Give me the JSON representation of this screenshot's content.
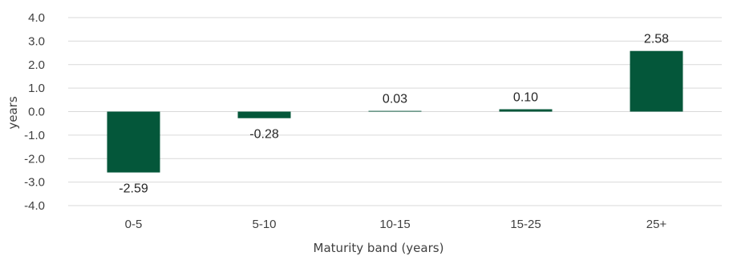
{
  "chart_data": {
    "type": "bar",
    "title": "",
    "xlabel": "Maturity band (years)",
    "ylabel": "years",
    "categories": [
      "0-5",
      "5-10",
      "10-15",
      "15-25",
      "25+"
    ],
    "values": [
      -2.59,
      -0.28,
      0.03,
      0.1,
      2.58
    ],
    "data_labels": [
      "-2.59",
      "-0.28",
      "0.03",
      "0.10",
      "2.58"
    ],
    "ylim": [
      -4.0,
      4.0
    ],
    "yticks": [
      4.0,
      3.0,
      2.0,
      1.0,
      0.0,
      -1.0,
      -2.0,
      -3.0,
      -4.0
    ],
    "ytick_labels": [
      "4.0",
      "3.0",
      "2.0",
      "1.0",
      "0.0",
      "-1.0",
      "-2.0",
      "-3.0",
      "-4.0"
    ],
    "grid": true,
    "legend": "none",
    "bar_color": "#04573a"
  }
}
